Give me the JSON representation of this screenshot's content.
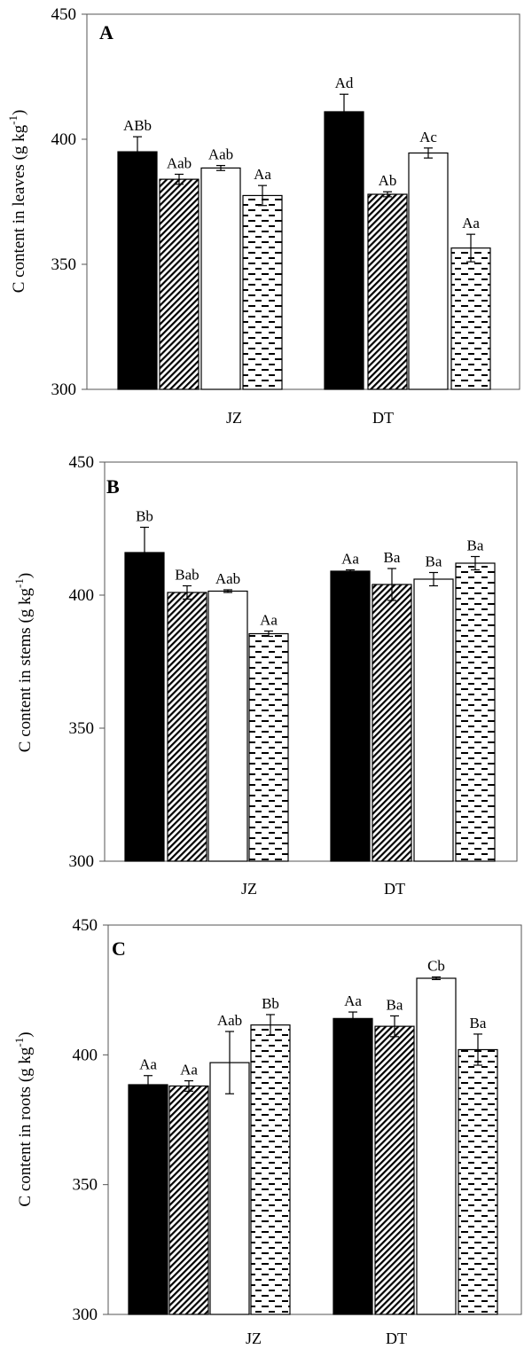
{
  "chart_data": [
    {
      "type": "bar",
      "panel_label": "A",
      "ylabel": "C content in leaves (g kg",
      "ylabel_sup": "-1",
      "ylabel_end": ")",
      "ylim": [
        300,
        450
      ],
      "yticks": [
        300,
        350,
        400,
        450
      ],
      "categories": [
        "JZ",
        "DT"
      ],
      "grid": false,
      "series": [
        {
          "pattern": "solid",
          "values": [
            395,
            411
          ],
          "errors": [
            6,
            7
          ],
          "labels": [
            "ABb",
            "Ad"
          ]
        },
        {
          "pattern": "hatch",
          "values": [
            384,
            378
          ],
          "errors": [
            2,
            1
          ],
          "labels": [
            "Aab",
            "Ab"
          ]
        },
        {
          "pattern": "white",
          "values": [
            388.5,
            394.5
          ],
          "errors": [
            1,
            2
          ],
          "labels": [
            "Aab",
            "Ac"
          ]
        },
        {
          "pattern": "dash",
          "values": [
            377.5,
            356.5
          ],
          "errors": [
            4,
            5.5
          ],
          "labels": [
            "Aa",
            "Aa"
          ]
        }
      ]
    },
    {
      "type": "bar",
      "panel_label": "B",
      "ylabel": "C content in stems (g kg",
      "ylabel_sup": "-1",
      "ylabel_end": ")",
      "ylim": [
        300,
        450
      ],
      "yticks": [
        300,
        350,
        400,
        450
      ],
      "categories": [
        "JZ",
        "DT"
      ],
      "grid": false,
      "series": [
        {
          "pattern": "solid",
          "values": [
            416,
            409
          ],
          "errors": [
            9.5,
            0.5
          ],
          "labels": [
            "Bb",
            "Aa"
          ]
        },
        {
          "pattern": "hatch",
          "values": [
            401,
            404
          ],
          "errors": [
            2.5,
            6
          ],
          "labels": [
            "Bab",
            "Ba"
          ]
        },
        {
          "pattern": "white",
          "values": [
            401.5,
            406
          ],
          "errors": [
            0.5,
            2.5
          ],
          "labels": [
            "Aab",
            "Ba"
          ]
        },
        {
          "pattern": "dash",
          "values": [
            385.5,
            412
          ],
          "errors": [
            1,
            2.5
          ],
          "labels": [
            "Aa",
            "Ba"
          ]
        }
      ]
    },
    {
      "type": "bar",
      "panel_label": "C",
      "ylabel": "C content in roots (g kg",
      "ylabel_sup": "-1",
      "ylabel_end": ")",
      "ylim": [
        300,
        450
      ],
      "yticks": [
        300,
        350,
        400,
        450
      ],
      "categories": [
        "JZ",
        "DT"
      ],
      "grid": false,
      "series": [
        {
          "pattern": "solid",
          "values": [
            388.5,
            414
          ],
          "errors": [
            3.5,
            2.5
          ],
          "labels": [
            "Aa",
            "Aa"
          ]
        },
        {
          "pattern": "hatch",
          "values": [
            388,
            411
          ],
          "errors": [
            2,
            4
          ],
          "labels": [
            "Aa",
            "Ba"
          ]
        },
        {
          "pattern": "white",
          "values": [
            397,
            429.5
          ],
          "errors": [
            12,
            0.5
          ],
          "labels": [
            "Aab",
            "Cb"
          ]
        },
        {
          "pattern": "dash",
          "values": [
            411.5,
            402
          ],
          "errors": [
            4,
            6
          ],
          "labels": [
            "Bb",
            "Ba"
          ]
        }
      ]
    }
  ]
}
